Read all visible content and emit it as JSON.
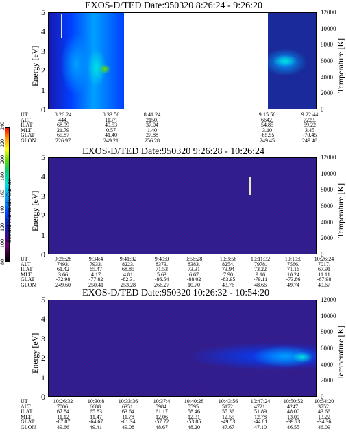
{
  "colors": {
    "background": "#1a2a9a",
    "colorbar": [
      "#000000",
      "#6a006a",
      "#1818b0",
      "#0040ff",
      "#00a0ff",
      "#00e0e0",
      "#00d070",
      "#60e000",
      "#ffff00",
      "#ffa000",
      "#ff3000",
      "#ff0000"
    ]
  },
  "colorbar": {
    "label": "Second Harmonic Current",
    "ticks": [
      "80",
      "100",
      "120",
      "140",
      "160",
      "180",
      "200",
      "220",
      "240"
    ]
  },
  "panels": [
    {
      "title": "EXOS-D/TED   Date:950320  8:26:24 - 9:26:20",
      "ylabel": "Energy [eV]",
      "y2label": "Temperature [K]",
      "yticks": [
        "5",
        "4",
        "3",
        "2",
        "1",
        "0"
      ],
      "y2ticks": [
        "12000",
        "10000",
        "8000",
        "6000",
        "4000",
        "2000",
        "0"
      ],
      "table_rows": [
        "UT",
        "ALT",
        "ILAT",
        "MLT",
        "GLAT",
        "GLON"
      ],
      "columns": [
        [
          "8:26:24",
          "444.",
          "68.99",
          "21.79",
          "65.87",
          "226.97"
        ],
        [
          "8:33:56",
          "1137.",
          "49.53",
          "0.57",
          "41.40",
          "249.21"
        ],
        [
          "8:41:24",
          "2150.",
          "37.04",
          "1.40",
          "27.88",
          "256.28"
        ],
        [
          "9:15:56",
          "6642.",
          "54.85",
          "3.10",
          "-65.55",
          "249.45"
        ],
        [
          "9:22:44",
          "7223.",
          "59.22",
          "3.45",
          "-70.45",
          "249.48"
        ]
      ]
    },
    {
      "title": "EXOS-D/TED   Date:950320  9:26:28 - 10:26:24",
      "ylabel": "Energy [eV]",
      "y2label": "Temperature [K]",
      "yticks": [
        "5",
        "4",
        "3",
        "2",
        "1",
        "0"
      ],
      "y2ticks": [
        "12000",
        "10000",
        "8000",
        "6000",
        "4000",
        "2000",
        "0"
      ],
      "table_rows": [
        "UT",
        "ALT",
        "ILAT",
        "MLT",
        "GLAT",
        "GLON"
      ],
      "columns": [
        [
          "9:26:28",
          "7493.",
          "61.42",
          "3.66",
          "-72.98",
          "249.60"
        ],
        [
          "9:34:4",
          "7933.",
          "65.47",
          "4.17",
          "-77.82",
          "250.41"
        ],
        [
          "9:41:32",
          "8223.",
          "68.85",
          "4.81",
          "-82.31",
          "253.28"
        ],
        [
          "9:49:0",
          "8373.",
          "71.53",
          "5.63",
          "-86.54",
          "266.27"
        ],
        [
          "9:56:28",
          "8383.",
          "73.31",
          "6.67",
          "-88.02",
          "10.70"
        ],
        [
          "10:3:56",
          "8254.",
          "73.94",
          "7.90",
          "-83.95",
          "43.76"
        ],
        [
          "10:11:32",
          "7978.",
          "73.22",
          "9.16",
          "-79.11",
          "48.66"
        ],
        [
          "10:19:0",
          "7566.",
          "71.16",
          "10.24",
          "-73.86",
          "49.74"
        ],
        [
          "10:26:24",
          "7017.",
          "67.91",
          "11.11",
          "-67.98",
          "49.67"
        ]
      ]
    },
    {
      "title": "EXOS-D/TED   Date:950320  10:26:32 - 10:54:20",
      "ylabel": "Energy [eV]",
      "y2label": "Temperature [K]",
      "yticks": [
        "5",
        "4",
        "3",
        "2",
        "1",
        "0"
      ],
      "y2ticks": [
        "12000",
        "10000",
        "8000",
        "6000",
        "4000",
        "2000",
        "0"
      ],
      "table_rows": [
        "UT",
        "ALT",
        "ILAT",
        "MLT",
        "GLAT",
        "GLON"
      ],
      "columns": [
        [
          "10:26:32",
          "7006.",
          "67.84",
          "11.12",
          "-67.87",
          "49.66"
        ],
        [
          "10:30:8",
          "6688.",
          "65.83",
          "11.47",
          "-64.67",
          "49.41"
        ],
        [
          "10:33:36",
          "6351.",
          "63.64",
          "11.78",
          "-61.34",
          "49.08"
        ],
        [
          "10:37:4",
          "5984.",
          "61.17",
          "12.06",
          "-57.72",
          "48.67"
        ],
        [
          "10:40:28",
          "5595.",
          "58.46",
          "12.31",
          "-53.85",
          "48.20"
        ],
        [
          "10:43:56",
          "5172.",
          "55.36",
          "12.55",
          "-49.53",
          "47.67"
        ],
        [
          "10:47:24",
          "4721.",
          "51.89",
          "12.78",
          "-44.81",
          "47.10"
        ],
        [
          "10:50:52",
          "4247.",
          "48.00",
          "13.00",
          "-39.73",
          "46.55"
        ],
        [
          "10:54:20",
          "3752.",
          "43.66",
          "13.22",
          "-34.36",
          "46.09"
        ]
      ]
    }
  ],
  "chart_data": [
    {
      "type": "heatmap",
      "title": "EXOS-D/TED   Date:950320  8:26:24 - 9:26:20",
      "ylabel": "Energy [eV]",
      "y2label": "Temperature [K]",
      "ylim": [
        0,
        5
      ],
      "y2lim": [
        0,
        12000
      ],
      "x_ticks": [
        "8:26:24",
        "8:33:56",
        "8:41:24",
        "9:15:56",
        "9:22:44"
      ]
    },
    {
      "type": "heatmap",
      "title": "EXOS-D/TED   Date:950320  9:26:28 - 10:26:24",
      "ylabel": "Energy [eV]",
      "y2label": "Temperature [K]",
      "ylim": [
        0,
        5
      ],
      "y2lim": [
        0,
        12000
      ],
      "x_ticks": [
        "9:26:28",
        "9:34:4",
        "9:41:32",
        "9:49:0",
        "9:56:28",
        "10:3:56",
        "10:11:32",
        "10:19:0",
        "10:26:24"
      ]
    },
    {
      "type": "heatmap",
      "title": "EXOS-D/TED   Date:950320  10:26:32 - 10:54:20",
      "ylabel": "Energy [eV]",
      "y2label": "Temperature [K]",
      "ylim": [
        0,
        5
      ],
      "y2lim": [
        0,
        12000
      ],
      "x_ticks": [
        "10:26:32",
        "10:30:8",
        "10:33:36",
        "10:37:4",
        "10:40:28",
        "10:43:56",
        "10:47:24",
        "10:50:52",
        "10:54:20"
      ]
    }
  ]
}
